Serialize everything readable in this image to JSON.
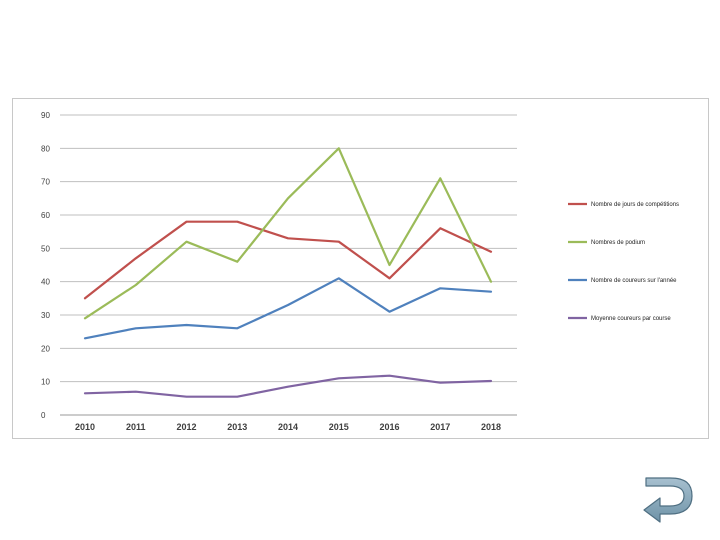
{
  "chart_data": {
    "type": "line",
    "title": "",
    "xlabel": "",
    "ylabel": "",
    "categories": [
      "2010",
      "2011",
      "2012",
      "2013",
      "2014",
      "2015",
      "2016",
      "2017",
      "2018"
    ],
    "yticks": [
      "0",
      "10",
      "20",
      "30",
      "40",
      "50",
      "60",
      "70",
      "80",
      "90"
    ],
    "ylim": [
      0,
      90
    ],
    "grid": "horizontal",
    "legend_position": "right",
    "series": [
      {
        "name": "Nombre de jours de compétitions",
        "color": "#c0504d",
        "values": [
          35,
          47,
          58,
          58,
          53,
          52,
          41,
          56,
          49
        ]
      },
      {
        "name": "Nombres de podium",
        "color": "#9bbb59",
        "values": [
          29,
          39,
          52,
          46,
          65,
          80,
          45,
          71,
          40
        ]
      },
      {
        "name": "Nombre de coureurs sur l'année",
        "color": "#4f81bd",
        "values": [
          23,
          26,
          27,
          26,
          33,
          41,
          31,
          38,
          37
        ]
      },
      {
        "name": "Moyenne coureurs par course",
        "color": "#8064a2",
        "values": [
          6.5,
          7,
          5.5,
          5.5,
          8.5,
          11,
          11.8,
          9.7,
          10.2
        ]
      }
    ]
  },
  "navigation": {
    "back_icon": "return-arrow-icon",
    "icon_color": "#7fa3b8"
  }
}
